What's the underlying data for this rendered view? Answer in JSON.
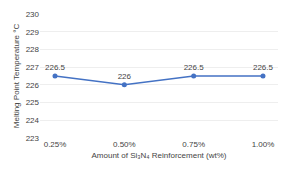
{
  "chart_data": {
    "type": "line",
    "xlabel": "Amount of Si₃N₄ Reinforcement (wt%)",
    "ylabel": "Melting Point Temperature °C",
    "categories": [
      "0.25%",
      "0.50%",
      "0.75%",
      "1.00%"
    ],
    "values": [
      226.5,
      226,
      226.5,
      226.5
    ],
    "color": "#4472C4",
    "marker": "circle",
    "ylim": [
      223,
      230
    ],
    "yticks": [
      223,
      224,
      225,
      226,
      227,
      228,
      229,
      230
    ],
    "grid": true,
    "data_labels": true
  }
}
